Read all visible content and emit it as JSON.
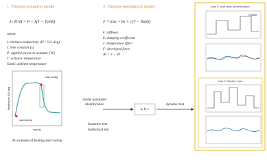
{
  "left": {
    "title": "1. Thermo-actuation model",
    "equation": "λt dT/dt = P − λ(T − Tamb)",
    "where": "where",
    "definitions": [
      "λ: thermo conductivity (W / Cel. deg)",
      "t: time constant [s]",
      "P: applied power to actuator [W]",
      "T: actuator temperature",
      "Tamb: ambient temperature"
    ],
    "chart": {
      "annotations": [
        "start cooling",
        "start heating"
      ],
      "x_label": "time [s]",
      "y_label": "Temperature [Cel. deg]"
    },
    "caption": "An example of heating and cooling"
  },
  "middle": {
    "title": "2. Thermo-mechanical model",
    "equation": "F = kΔx + bẋ + c(T − Tamb)",
    "definitions": [
      "k: stiffness",
      "b: damping coefficient",
      "c: temperature effect",
      "F: developed force",
      "Δx = x − x0"
    ],
    "identification": [
      "model parameter",
      "identification"
    ],
    "parameters": "k, b, c",
    "tests": [
      "Isometric test",
      "Isothermal test"
    ],
    "dynamic": "dynamic test"
  },
  "right": {
    "case1": {
      "title": "Case 1: Input same as identification",
      "legend": "Org.test"
    },
    "case2": {
      "title": "Case 2: Random input"
    }
  }
}
